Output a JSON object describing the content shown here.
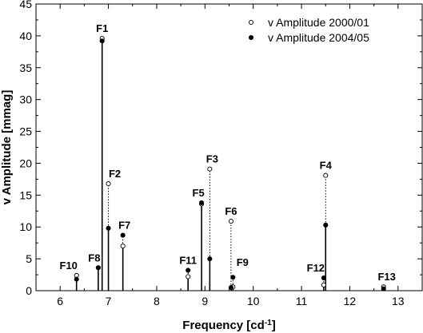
{
  "chart_data": {
    "type": "scatter",
    "xlabel": "Frequency [cd",
    "xlabel_sup": "-1",
    "xlabel_end": "]",
    "ylabel": "v Amplitude [mmag]",
    "xlim": [
      5.5,
      13.5
    ],
    "ylim": [
      0,
      45
    ],
    "xticks": [
      "6",
      "7",
      "8",
      "9",
      "10",
      "11",
      "12",
      "13"
    ],
    "yticks": [
      "0",
      "5",
      "10",
      "15",
      "20",
      "25",
      "30",
      "35",
      "40",
      "45"
    ],
    "grid": false,
    "legend_position": "top-right",
    "series": [
      {
        "name": "v Amplitude 2000/01",
        "marker": "open-circle",
        "x": [
          6.34,
          6.79,
          6.87,
          7.0,
          7.3,
          8.65,
          8.93,
          9.1,
          9.54,
          9.58,
          11.46,
          11.5,
          12.7
        ],
        "y": [
          2.4,
          3.6,
          39.6,
          16.8,
          7.0,
          2.2,
          13.6,
          19.1,
          10.9,
          0.6,
          0.9,
          18.1,
          0.6
        ]
      },
      {
        "name": "v Amplitude 2004/05",
        "marker": "filled-circle",
        "x": [
          6.34,
          6.79,
          6.87,
          7.0,
          7.3,
          8.65,
          8.93,
          9.1,
          9.54,
          9.58,
          11.46,
          11.5,
          12.7
        ],
        "y": [
          1.8,
          3.6,
          39.2,
          9.8,
          8.7,
          3.2,
          13.8,
          5.0,
          0.5,
          2.1,
          2.0,
          10.3,
          0.3
        ]
      }
    ],
    "peaks": [
      {
        "label": "F1",
        "x": 6.87,
        "y2000": 39.6,
        "y2004": 39.2
      },
      {
        "label": "F2",
        "x": 7.0,
        "y2000": 16.8,
        "y2004": 9.8
      },
      {
        "label": "F3",
        "x": 9.1,
        "y2000": 19.1,
        "y2004": 5.0
      },
      {
        "label": "F4",
        "x": 11.5,
        "y2000": 18.1,
        "y2004": 10.3
      },
      {
        "label": "F5",
        "x": 8.93,
        "y2000": 13.6,
        "y2004": 13.8
      },
      {
        "label": "F6",
        "x": 9.54,
        "y2000": 10.9,
        "y2004": 0.5
      },
      {
        "label": "F7",
        "x": 7.3,
        "y2000": 7.0,
        "y2004": 8.7
      },
      {
        "label": "F8",
        "x": 6.79,
        "y2000": 3.6,
        "y2004": 3.6
      },
      {
        "label": "F9",
        "x": 9.58,
        "y2000": 0.6,
        "y2004": 2.1
      },
      {
        "label": "F10",
        "x": 6.34,
        "y2000": 2.4,
        "y2004": 1.8
      },
      {
        "label": "F11",
        "x": 8.65,
        "y2000": 2.2,
        "y2004": 3.2
      },
      {
        "label": "F12",
        "x": 11.46,
        "y2000": 0.9,
        "y2004": 2.0
      },
      {
        "label": "F13",
        "x": 12.7,
        "y2000": 0.6,
        "y2004": 0.3
      }
    ]
  }
}
